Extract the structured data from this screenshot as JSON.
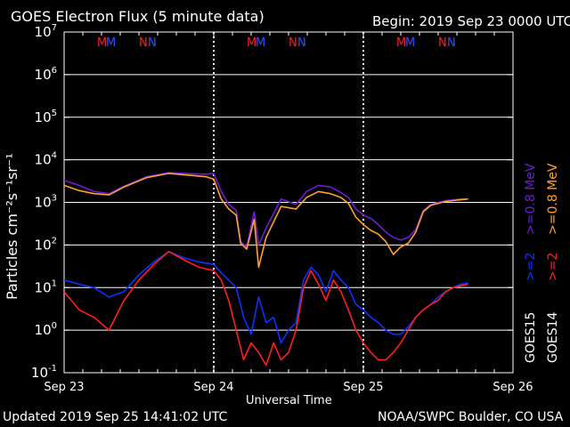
{
  "header": {
    "title": "GOES Electron Flux (5 minute data)",
    "begin": "Begin: 2019 Sep 23 0000 UTC"
  },
  "footer": {
    "updated": "Updated 2019 Sep 25 14:41:02 UTC",
    "credit": "NOAA/SWPC Boulder, CO USA"
  },
  "legend": {
    "goes15": "GOES15",
    "goes14": "GOES14",
    "ge2_15": ">=2",
    "ge08_15": ">=0.8 MeV",
    "ge2_14": ">=2",
    "ge08_14": ">=0.8 MeV",
    "colors": {
      "goes15_ge08": "#6a1fd0",
      "goes15_ge2": "#1030ff",
      "goes14_ge08": "#ffa030",
      "goes14_ge2": "#ff2020"
    }
  },
  "markers": {
    "M": "M",
    "N": "N"
  },
  "chart_data": {
    "type": "line",
    "title": "GOES Electron Flux (5 minute data)",
    "xlabel": "Universal Time",
    "ylabel": "Particles cm⁻²s⁻¹sr⁻¹",
    "x_ticks": [
      "Sep 23",
      "Sep 24",
      "Sep 25",
      "Sep 26"
    ],
    "y_ticks": [
      "10^-1",
      "10^0",
      "10^1",
      "10^2",
      "10^3",
      "10^4",
      "10^5",
      "10^6",
      "10^7"
    ],
    "y_scale": "log",
    "ylim": [
      0.1,
      10000000
    ],
    "xlim_days": [
      0,
      3
    ],
    "threshold": 1000,
    "series": [
      {
        "name": "GOES15 >=0.8 MeV",
        "color": "#6a1fd0",
        "x": [
          0,
          0.1,
          0.2,
          0.3,
          0.4,
          0.55,
          0.7,
          0.85,
          0.95,
          1.0,
          1.05,
          1.1,
          1.15,
          1.18,
          1.22,
          1.27,
          1.3,
          1.35,
          1.45,
          1.55,
          1.62,
          1.7,
          1.78,
          1.85,
          1.9,
          1.95,
          2.0,
          2.05,
          2.1,
          2.15,
          2.2,
          2.25,
          2.3,
          2.35,
          2.4,
          2.45,
          2.5,
          2.55,
          2.6,
          2.65,
          2.7
        ],
        "y": [
          3300,
          2500,
          1800,
          1600,
          2400,
          4000,
          5000,
          4700,
          4600,
          4800,
          1800,
          900,
          650,
          120,
          90,
          600,
          100,
          250,
          1200,
          900,
          1800,
          2500,
          2300,
          1700,
          1300,
          700,
          500,
          420,
          300,
          200,
          150,
          130,
          150,
          230,
          650,
          900,
          1000,
          1100,
          1150,
          1200,
          1200
        ]
      },
      {
        "name": "GOES14 >=0.8 MeV",
        "color": "#ffa030",
        "x": [
          0,
          0.1,
          0.2,
          0.3,
          0.4,
          0.55,
          0.7,
          0.85,
          0.95,
          1.0,
          1.05,
          1.1,
          1.15,
          1.18,
          1.22,
          1.27,
          1.3,
          1.35,
          1.45,
          1.55,
          1.62,
          1.7,
          1.78,
          1.85,
          1.9,
          1.95,
          2.0,
          2.05,
          2.1,
          2.15,
          2.2,
          2.25,
          2.3,
          2.35,
          2.4,
          2.45,
          2.5,
          2.55,
          2.6,
          2.65,
          2.7
        ],
        "y": [
          2500,
          1900,
          1600,
          1500,
          2300,
          3800,
          4800,
          4300,
          4000,
          3500,
          1200,
          700,
          500,
          110,
          80,
          400,
          30,
          150,
          800,
          700,
          1300,
          1800,
          1600,
          1300,
          950,
          450,
          300,
          220,
          180,
          120,
          60,
          90,
          110,
          200,
          600,
          850,
          950,
          1050,
          1100,
          1150,
          1200
        ]
      },
      {
        "name": "GOES15 >=2",
        "color": "#1030ff",
        "x": [
          0,
          0.1,
          0.2,
          0.3,
          0.4,
          0.5,
          0.6,
          0.7,
          0.8,
          0.9,
          1.0,
          1.05,
          1.1,
          1.15,
          1.2,
          1.25,
          1.3,
          1.35,
          1.4,
          1.45,
          1.5,
          1.55,
          1.6,
          1.65,
          1.7,
          1.75,
          1.8,
          1.85,
          1.9,
          1.95,
          2.0,
          2.05,
          2.1,
          2.15,
          2.2,
          2.25,
          2.3,
          2.35,
          2.4,
          2.45,
          2.5,
          2.55,
          2.6,
          2.65,
          2.7
        ],
        "y": [
          15,
          12,
          10,
          6,
          8,
          20,
          40,
          70,
          50,
          40,
          35,
          22,
          15,
          10,
          2,
          0.8,
          6,
          1.5,
          2,
          0.5,
          1,
          1.5,
          15,
          30,
          20,
          8,
          25,
          15,
          10,
          4,
          3,
          2,
          1.5,
          1,
          0.8,
          0.8,
          1.2,
          2,
          3,
          4,
          6,
          8,
          10,
          12,
          13
        ]
      },
      {
        "name": "GOES14 >=2",
        "color": "#ff2020",
        "x": [
          0,
          0.1,
          0.2,
          0.3,
          0.4,
          0.5,
          0.6,
          0.7,
          0.8,
          0.9,
          1.0,
          1.05,
          1.1,
          1.15,
          1.2,
          1.25,
          1.3,
          1.35,
          1.4,
          1.45,
          1.5,
          1.55,
          1.6,
          1.65,
          1.7,
          1.75,
          1.8,
          1.85,
          1.9,
          1.95,
          2.0,
          2.05,
          2.1,
          2.15,
          2.2,
          2.25,
          2.3,
          2.35,
          2.4,
          2.45,
          2.5,
          2.55,
          2.6,
          2.65,
          2.7
        ],
        "y": [
          8,
          3,
          2,
          1,
          5,
          15,
          35,
          70,
          45,
          30,
          25,
          15,
          5,
          1,
          0.2,
          0.5,
          0.3,
          0.15,
          0.5,
          0.2,
          0.3,
          1,
          10,
          25,
          12,
          5,
          15,
          8,
          3,
          1,
          0.5,
          0.3,
          0.2,
          0.2,
          0.3,
          0.5,
          1,
          2,
          3,
          4,
          5,
          8,
          10,
          11,
          12
        ]
      }
    ]
  }
}
